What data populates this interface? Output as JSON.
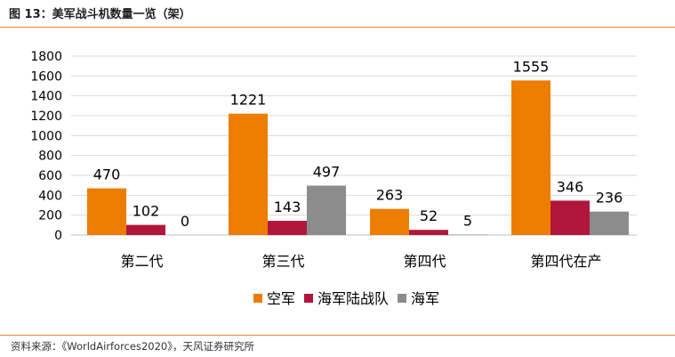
{
  "figure": {
    "title": "图 13：美军战斗机数量一览（架）",
    "source": "资料来源：《WorldAirforces2020》，天风证券研究所"
  },
  "chart_data": {
    "type": "bar",
    "title": "",
    "xlabel": "",
    "ylabel": "",
    "categories": [
      "第二代",
      "第三代",
      "第四代",
      "第四代在产"
    ],
    "series": [
      {
        "name": "空军",
        "color": "#ed7d00",
        "values": [
          470,
          1221,
          263,
          1555
        ]
      },
      {
        "name": "海军陆战队",
        "color": "#b0173b",
        "values": [
          102,
          143,
          52,
          346
        ]
      },
      {
        "name": "海军",
        "color": "#8c8c8c",
        "values": [
          0,
          497,
          5,
          236
        ]
      }
    ],
    "ylim": [
      0,
      1800
    ],
    "yticks": [
      0,
      200,
      400,
      600,
      800,
      1000,
      1200,
      1400,
      1600,
      1800
    ],
    "grid": true,
    "legend": "bottom-center"
  }
}
